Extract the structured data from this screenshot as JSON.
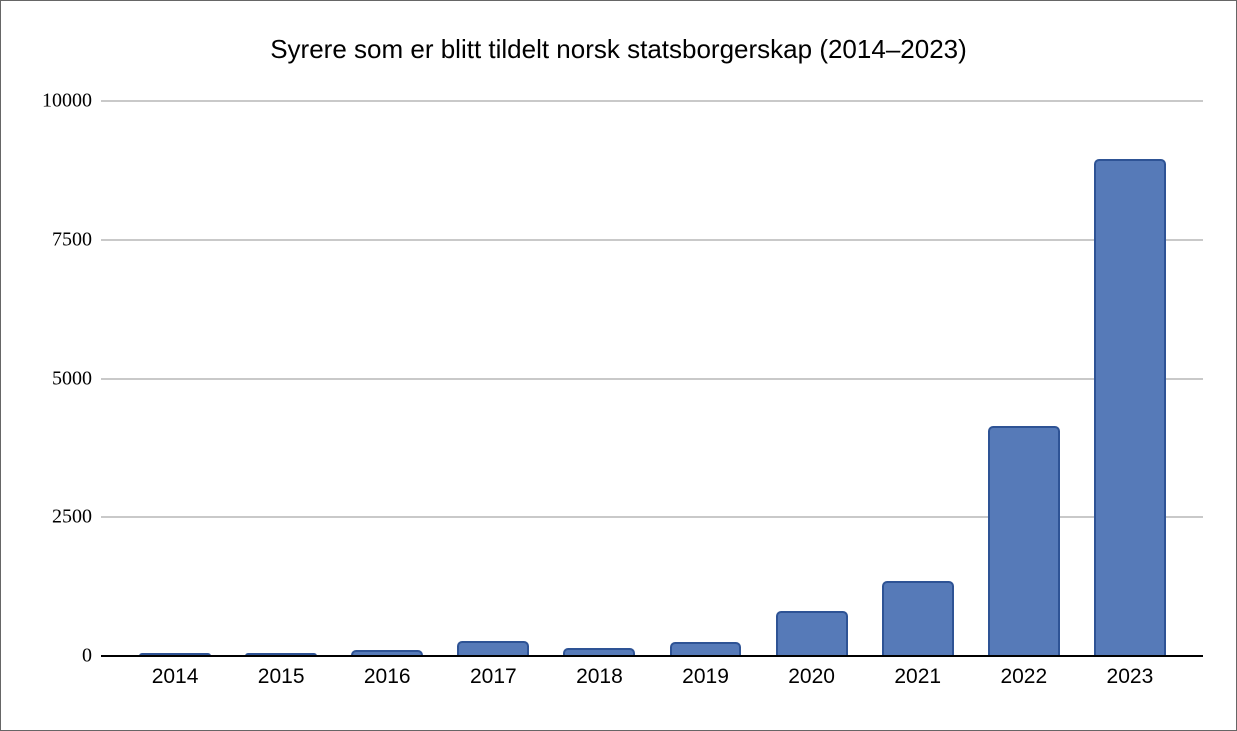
{
  "frame": {
    "background": "#ffffff",
    "border_color": "#666666"
  },
  "chart_data": {
    "type": "bar",
    "title": "Syrere som er blitt tildelt norsk statsborgerskap (2014–2023)",
    "categories": [
      "2014",
      "2015",
      "2016",
      "2017",
      "2018",
      "2019",
      "2020",
      "2021",
      "2022",
      "2023"
    ],
    "values": [
      33,
      54,
      103,
      275,
      144,
      246,
      804,
      1358,
      4141,
      8954
    ],
    "xlabel": "",
    "ylabel": "",
    "ylim": [
      0,
      10000
    ],
    "ytick_interval": 2500,
    "ytick_labels": [
      "0",
      "2500",
      "5000",
      "7500",
      "10000"
    ],
    "grid": true,
    "legend_position": "none",
    "colors": {
      "bar_fill": "#567ab8",
      "bar_border": "#2e5395",
      "gridline": "#c9c9c9",
      "axis_line": "#000000",
      "text": "#000000"
    }
  }
}
